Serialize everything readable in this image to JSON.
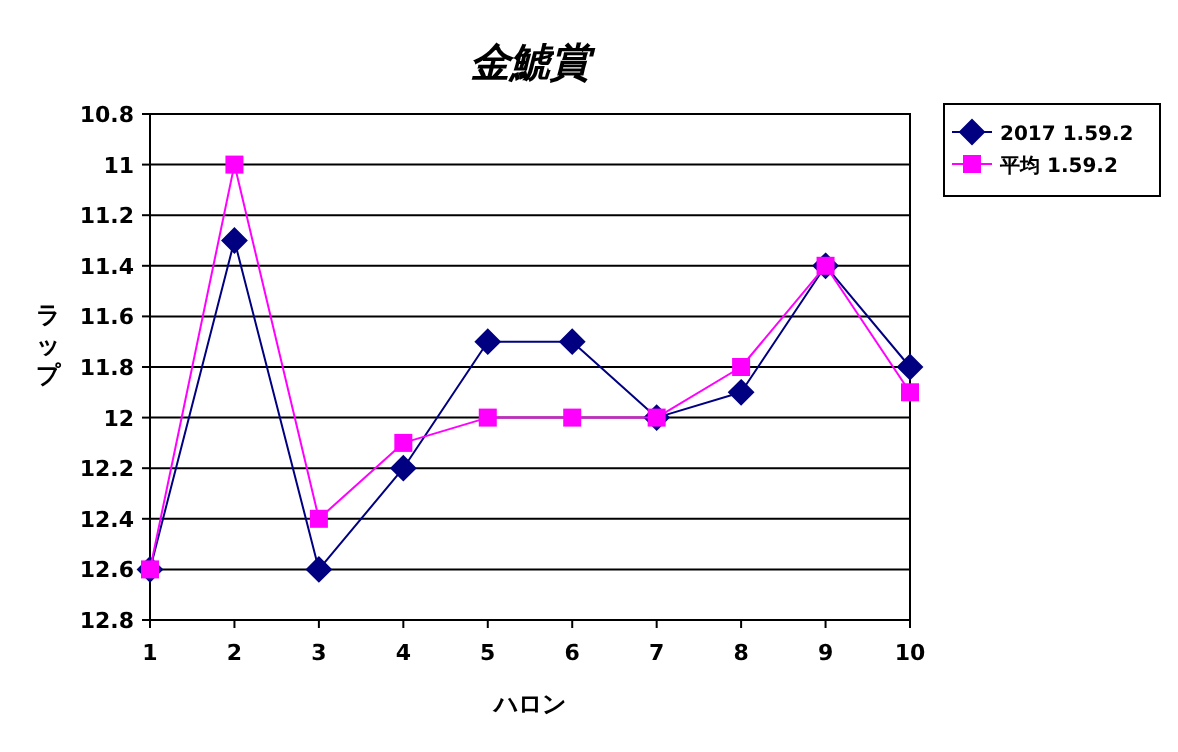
{
  "chart_data": {
    "type": "line",
    "title": "金鯱賞",
    "xlabel": "ハロン",
    "ylabel": "ラップ",
    "x": [
      1,
      2,
      3,
      4,
      5,
      6,
      7,
      8,
      9,
      10
    ],
    "xlim": [
      1,
      10
    ],
    "xticks": [
      1,
      2,
      3,
      4,
      5,
      6,
      7,
      8,
      9,
      10
    ],
    "ylim": [
      12.8,
      10.8
    ],
    "yticks": [
      10.8,
      11,
      11.2,
      11.4,
      11.6,
      11.8,
      12,
      12.2,
      12.4,
      12.6,
      12.8
    ],
    "grid": "y",
    "legend": "right",
    "series": [
      {
        "name": "2017 1.59.2",
        "color": "#000080",
        "marker": "diamond",
        "values": [
          12.6,
          11.3,
          12.6,
          12.2,
          11.7,
          11.7,
          12.0,
          11.9,
          11.4,
          11.8
        ]
      },
      {
        "name": "平均 1.59.2",
        "color": "#ff00ff",
        "marker": "square",
        "values": [
          12.6,
          11.0,
          12.4,
          12.1,
          12.0,
          12.0,
          12.0,
          11.8,
          11.4,
          11.9
        ]
      }
    ]
  }
}
